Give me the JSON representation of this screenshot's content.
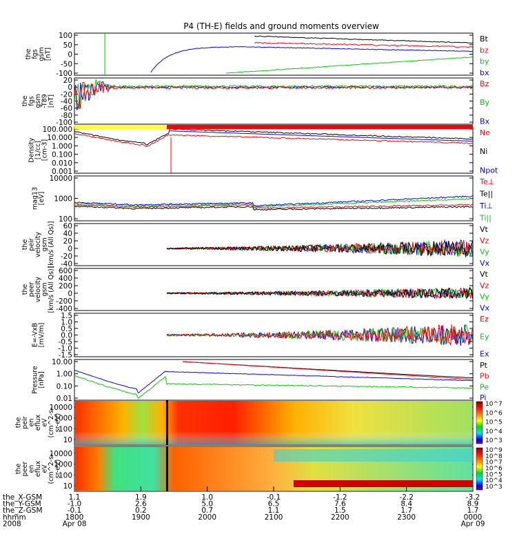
{
  "title": "P4 (TH-E) fields and ground moments overview",
  "chart_data": [
    {
      "type": "line",
      "id": "fgs",
      "ylabel": [
        "the",
        "fgs",
        "gsm",
        "[nT]"
      ],
      "yticks": [
        "100",
        "50",
        "0",
        "-50",
        "-100"
      ],
      "ylim": [
        -100,
        100
      ],
      "legend": [
        {
          "name": "Bt",
          "color": "#000000"
        },
        {
          "name": "bz",
          "color": "#ff0000"
        },
        {
          "name": "by",
          "color": "#00cc00"
        },
        {
          "name": "bx",
          "color": "#0000ff"
        }
      ]
    },
    {
      "type": "line",
      "id": "fgs-hp",
      "ylabel": [
        "the",
        "fgs",
        "gsm",
        "-T89",
        "[nT]"
      ],
      "yticks": [
        "20",
        "0",
        "-20",
        "-40",
        "-60",
        "-80",
        "-100"
      ],
      "ylim": [
        -100,
        20
      ],
      "legend": [
        {
          "name": "Bz",
          "color": "#ff0000"
        },
        {
          "name": "By",
          "color": "#00cc00"
        },
        {
          "name": "Bx",
          "color": "#0000ff"
        }
      ]
    },
    {
      "type": "line",
      "id": "density",
      "scale": "log",
      "ylabel": [
        "Density",
        "[1/cc]",
        "[cm-3]"
      ],
      "yticks": [
        "100.000",
        "10.000",
        "1.000",
        "0.100",
        "0.010",
        "0.001"
      ],
      "legend": [
        {
          "name": "Ne",
          "color": "#ff0000"
        },
        {
          "name": "Ni",
          "color": "#000000"
        },
        {
          "name": "Npot",
          "color": "#0000ff"
        }
      ]
    },
    {
      "type": "line",
      "id": "temperature",
      "scale": "log",
      "ylabel": [
        "mag13",
        "[eV]"
      ],
      "yticks": [
        "10000",
        "1000",
        "100"
      ],
      "legend": [
        {
          "name": "Te⊥",
          "color": "#ff0000"
        },
        {
          "name": "Te||",
          "color": "#000000"
        },
        {
          "name": "Ti⊥",
          "color": "#0000ff"
        },
        {
          "name": "Ti||",
          "color": "#00cc00"
        }
      ]
    },
    {
      "type": "line",
      "id": "peir-velocity",
      "ylabel": [
        "the",
        "peir",
        "velocity",
        "gsm",
        "[km/s (All Qs)]"
      ],
      "yticks": [
        "60",
        "40",
        "20",
        "0",
        "-20",
        "-40"
      ],
      "ylim": [
        -40,
        60
      ],
      "legend": [
        {
          "name": "Vt",
          "color": "#000000"
        },
        {
          "name": "Vz",
          "color": "#ff0000"
        },
        {
          "name": "Vy",
          "color": "#00cc00"
        },
        {
          "name": "Vx",
          "color": "#0000ff"
        }
      ]
    },
    {
      "type": "line",
      "id": "peer-velocity",
      "ylabel": [
        "the",
        "peer",
        "velocity",
        "gsm",
        "[km/s (All Qs)]"
      ],
      "yticks": [
        "600",
        "400",
        "200",
        "0",
        "-200",
        "-400"
      ],
      "ylim": [
        -400,
        600
      ],
      "legend": [
        {
          "name": "Vt",
          "color": "#000000"
        },
        {
          "name": "Vz",
          "color": "#ff0000"
        },
        {
          "name": "Vy",
          "color": "#00cc00"
        },
        {
          "name": "Vx",
          "color": "#0000ff"
        }
      ]
    },
    {
      "type": "line",
      "id": "efield",
      "ylabel": [
        "E=-VxB",
        "[mV/m]"
      ],
      "yticks": [
        "1.5",
        "1.0",
        "0.5",
        "0.0",
        "-0.5",
        "-1.0",
        "-1.5"
      ],
      "ylim": [
        -1.5,
        1.5
      ],
      "legend": [
        {
          "name": "Ez",
          "color": "#ff0000"
        },
        {
          "name": "Ey",
          "color": "#00cc00"
        },
        {
          "name": "Ex",
          "color": "#0000ff"
        }
      ]
    },
    {
      "type": "line",
      "id": "pressure",
      "scale": "log",
      "ylabel": [
        "Pressure",
        "[nPa]"
      ],
      "yticks": [
        "10.00",
        "1.00",
        "0.10",
        "0.01"
      ],
      "legend": [
        {
          "name": "Pt",
          "color": "#000000"
        },
        {
          "name": "Pb",
          "color": "#ff0000"
        },
        {
          "name": "Pe",
          "color": "#00cc00"
        },
        {
          "name": "Pi",
          "color": "#0000ff"
        }
      ]
    },
    {
      "type": "heatmap",
      "id": "peir-spectrum",
      "ylabel": [
        "the",
        "peir",
        "en",
        "eflux",
        "eV",
        "(cm^2-s-",
        "sr-eV)"
      ],
      "yticks": [
        "10000",
        "1000",
        "100",
        "10"
      ],
      "colorbar": [
        "10^7",
        "10^6",
        "10^5",
        "10^4",
        "10^3"
      ]
    },
    {
      "type": "heatmap",
      "id": "peer-spectrum",
      "ylabel": [
        "the",
        "peer",
        "en",
        "eflux",
        "eV",
        "(cm^2-s-",
        "sr-eV)"
      ],
      "yticks": [
        "10000",
        "1000",
        "100",
        "10"
      ],
      "colorbar": [
        "10^9",
        "10^8",
        "10^7",
        "10^6",
        "10^5",
        "10^4",
        "10^3"
      ]
    }
  ],
  "x_axis": {
    "row_labels": [
      "the_X-GSM",
      "the_Y-GSM",
      "the_Z-GSM",
      "hhmm",
      "2008"
    ],
    "columns": [
      {
        "x": "1.1",
        "y": "-1.0",
        "z": "-0.1",
        "hhmm": "1800",
        "date": "Apr 08"
      },
      {
        "x": "1.9",
        "y": "2.6",
        "z": "0.2",
        "hhmm": "1900",
        "date": ""
      },
      {
        "x": "1.0",
        "y": "5.0",
        "z": "0.7",
        "hhmm": "2000",
        "date": ""
      },
      {
        "x": "-0.1",
        "y": "6.5",
        "z": "1.1",
        "hhmm": "2100",
        "date": ""
      },
      {
        "x": "-1.2",
        "y": "7.6",
        "z": "1.5",
        "hhmm": "2200",
        "date": ""
      },
      {
        "x": "-2.2",
        "y": "8.4",
        "z": "1.7",
        "hhmm": "2300",
        "date": ""
      },
      {
        "x": "-3.2",
        "y": "8.9",
        "z": "1.7",
        "hhmm": "0000",
        "date": "Apr 09"
      }
    ]
  }
}
